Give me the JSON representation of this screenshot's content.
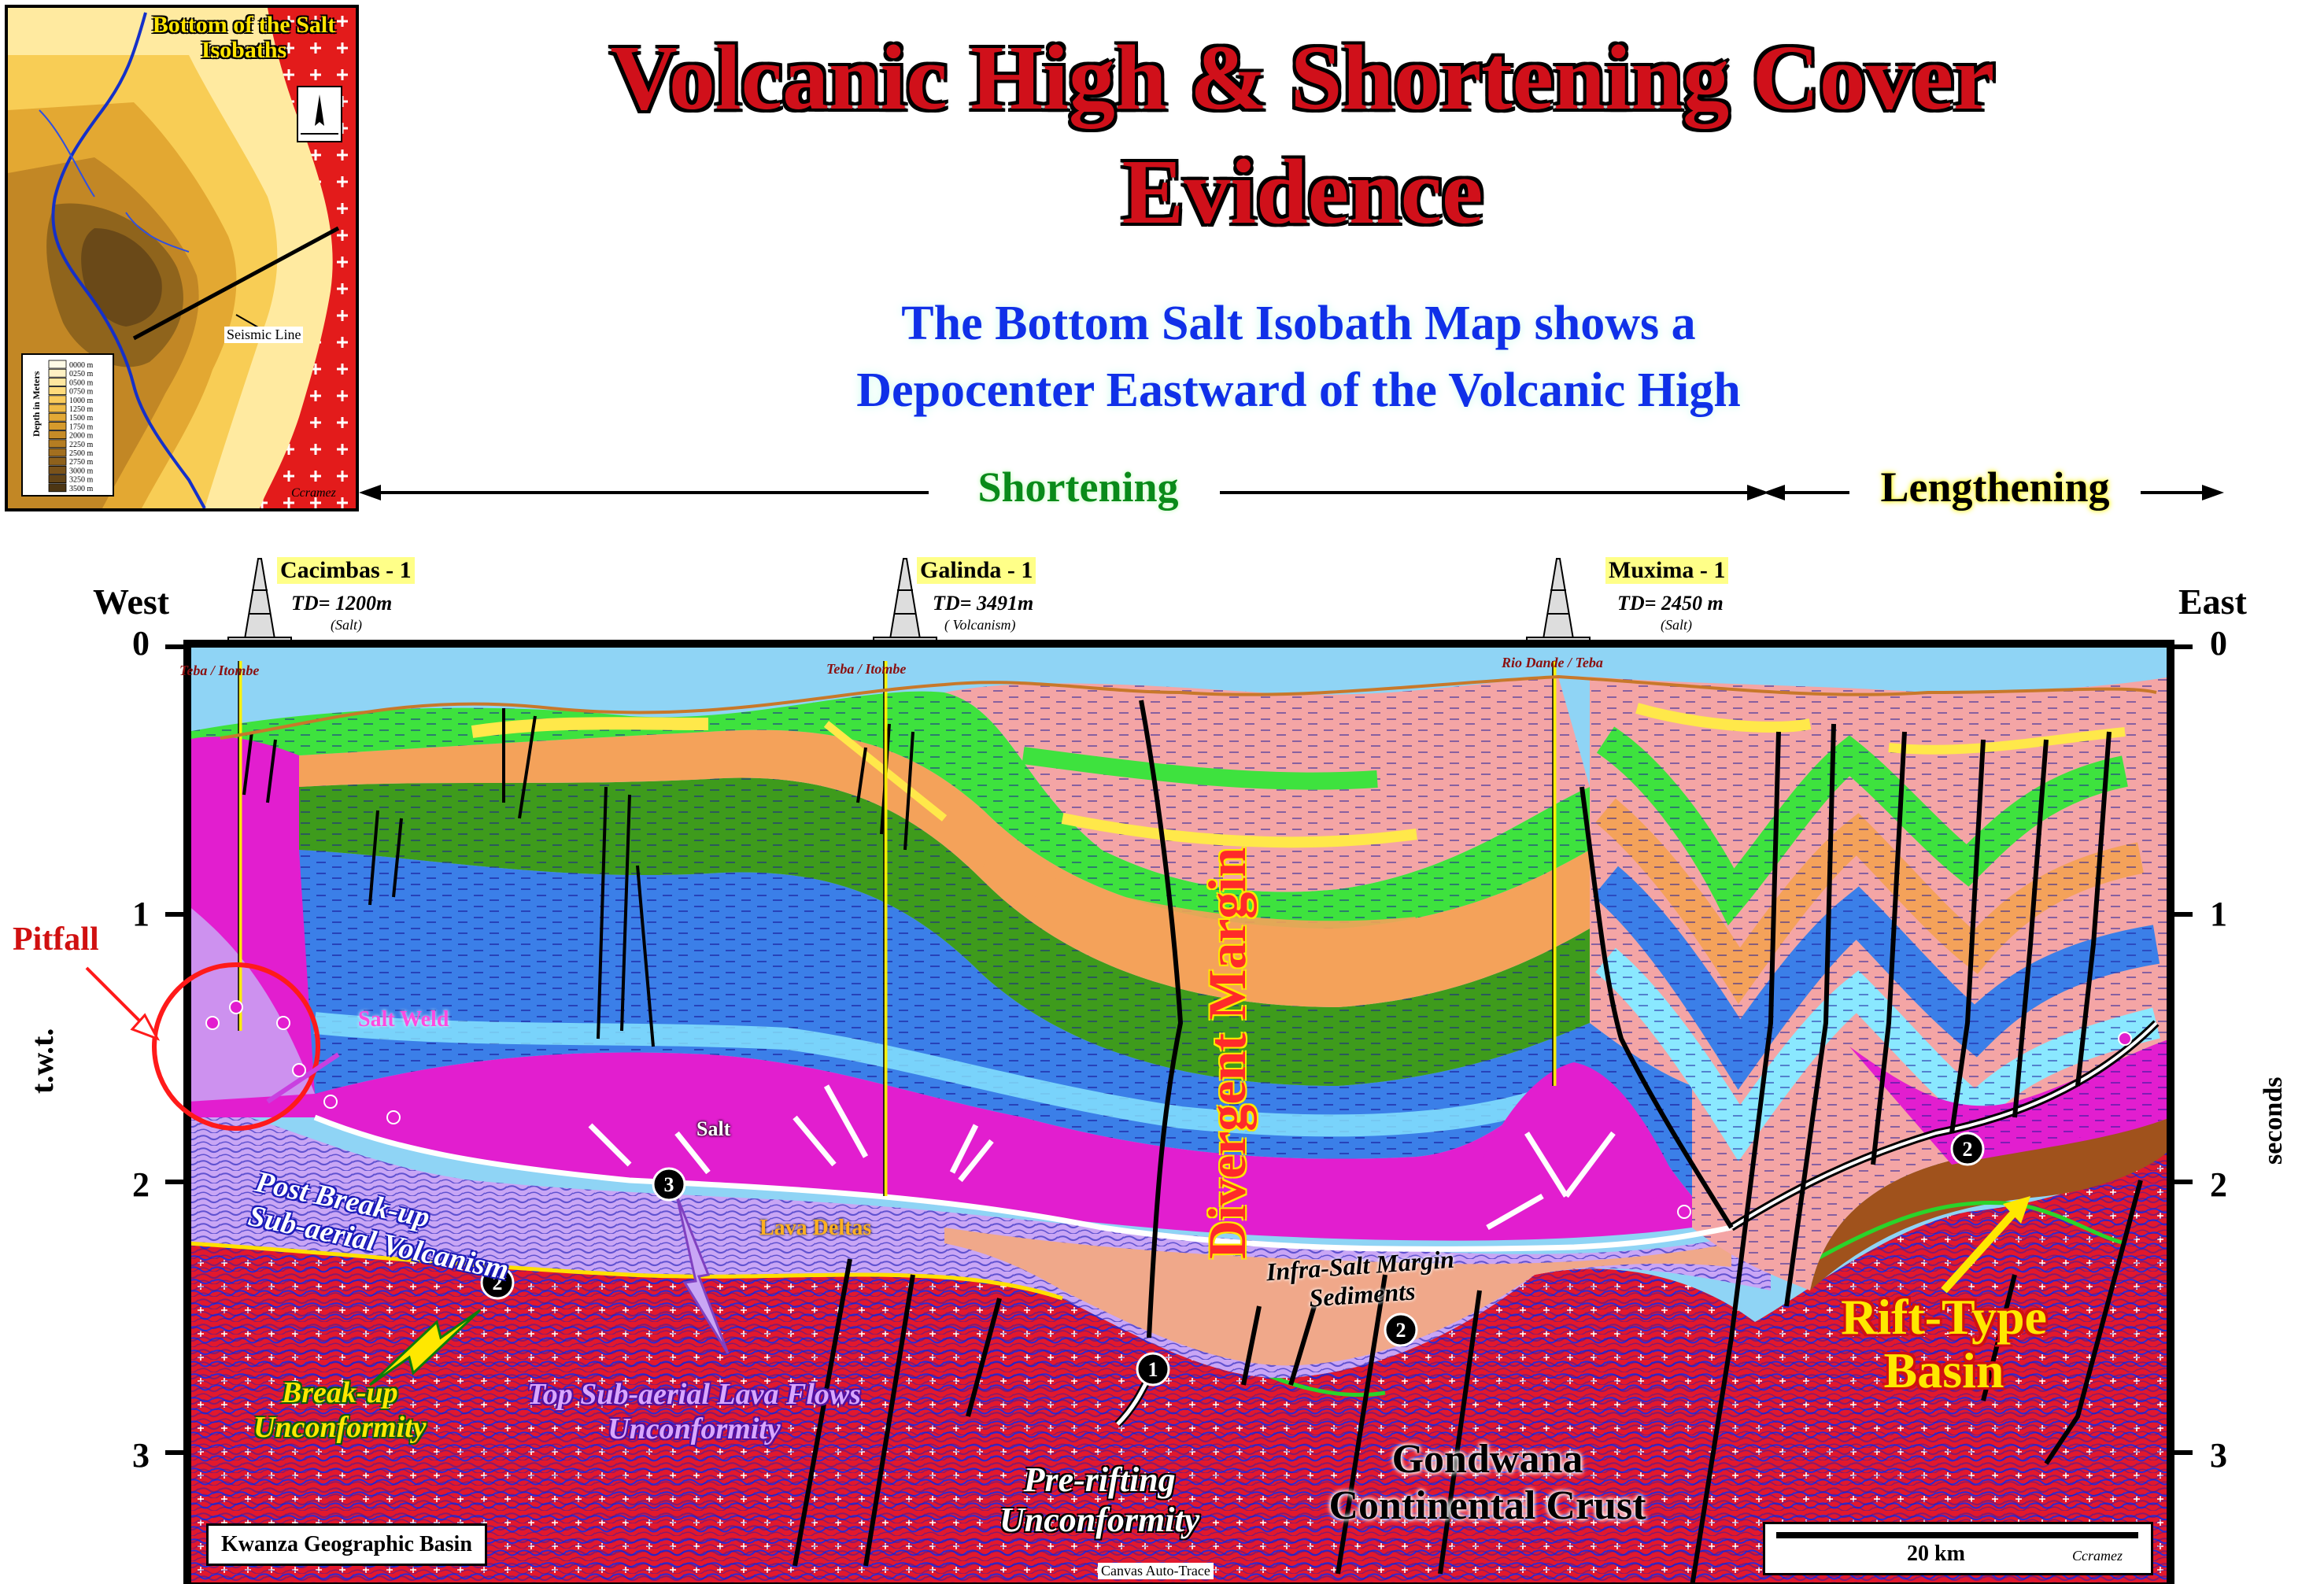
{
  "title_line1": "Volcanic High & Shortening Cover",
  "title_line2": "Evidence",
  "subtitle_line1": "The Bottom Salt Isobath Map shows a",
  "subtitle_line2": "Depocenter Eastward of the Volcanic High",
  "map": {
    "title_line1": "Bottom of the Salt",
    "title_line2": "Isobaths",
    "seismic_line_label": "Seismic Line",
    "credit": "Ccramez",
    "legend_axis_label": "Depth in Meters",
    "legend_values": [
      "0000 m",
      "0250 m",
      "0500 m",
      "0750 m",
      "1000 m",
      "1250 m",
      "1500 m",
      "1750 m",
      "2000 m",
      "2250 m",
      "2500 m",
      "2750 m",
      "3000 m",
      "3250 m",
      "3500 m"
    ],
    "legend_colors": [
      "#fffbe6",
      "#fff2c4",
      "#ffe7a0",
      "#ffdb7c",
      "#f9cb5c",
      "#efba46",
      "#e3a936",
      "#d59a2c",
      "#c68b26",
      "#b57d22",
      "#a26f1f",
      "#8e611c",
      "#79521a",
      "#634417",
      "#4d3613"
    ]
  },
  "arrows": {
    "shortening": "Shortening",
    "lengthening": "Lengthening"
  },
  "wells": [
    {
      "name": "Cacimbas - 1",
      "td": "TD= 1200m",
      "note": "(Salt)",
      "formation": "Teba / Itombe"
    },
    {
      "name": "Galinda - 1",
      "td": "TD= 3491m",
      "note": "( Volcanism)",
      "formation": "Teba / Itombe"
    },
    {
      "name": "Muxima - 1",
      "td": "TD= 2450 m",
      "note": "(Salt)",
      "formation": "Rio Dande / Teba"
    }
  ],
  "axes": {
    "west": "West",
    "east": "East",
    "left_label": "t.w.t.",
    "right_label": "seconds",
    "ticks": [
      "0",
      "1",
      "2",
      "3"
    ]
  },
  "labels": {
    "pitfall": "Pitfall",
    "salt_weld": "Salt Weld",
    "salt": "Salt",
    "post_breakup_1": "Post Break-up",
    "post_breakup_2": "Sub-aerial Volcanism",
    "lava_deltas": "Lava Deltas",
    "divergent_margin": "Divergent Margin",
    "infra_salt_1": "Infra-Salt Margin",
    "infra_salt_2": "Sediments",
    "breakup_1": "Break-up",
    "breakup_2": "Unconformity",
    "top_lava_1": "Top Sub-aerial Lava Flows",
    "top_lava_2": "Unconformity",
    "prerifting_1": "Pre-rifting",
    "prerifting_2": "Unconformity",
    "gondwana_1": "Gondwana",
    "gondwana_2": "Continental Crust",
    "rift_1": "Rift-Type",
    "rift_2": "Basin",
    "basin_name": "Kwanza Geographic Basin",
    "scale": "20 km",
    "credit": "Ccramez",
    "autotrace": "Canvas Auto-Trace",
    "marker_1": "1",
    "marker_2": "2",
    "marker_3": "3"
  }
}
